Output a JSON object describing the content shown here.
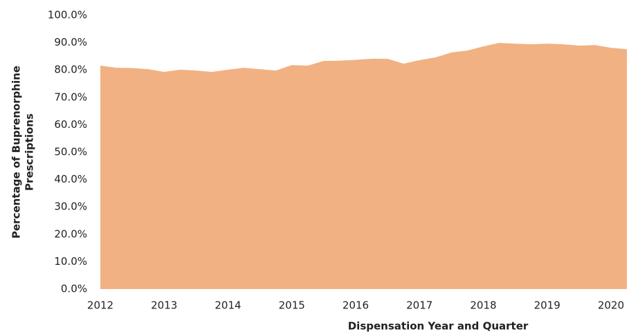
{
  "chart_data": {
    "type": "area",
    "x_label": "Dispensation Year and Quarter",
    "y_label_lines": [
      "Percentage of Buprenorphine",
      "Prescriptions"
    ],
    "categories": [
      "2012",
      null,
      null,
      null,
      "2013",
      null,
      null,
      null,
      "2014",
      null,
      null,
      null,
      "2015",
      null,
      null,
      null,
      "2016",
      null,
      null,
      null,
      "2017",
      null,
      null,
      null,
      "2018",
      null,
      null,
      null,
      "2019",
      null,
      null,
      null,
      "2020",
      null
    ],
    "values": [
      81.6,
      80.8,
      80.7,
      80.3,
      79.3,
      80.1,
      79.8,
      79.3,
      80.1,
      80.8,
      80.3,
      79.8,
      81.8,
      81.6,
      83.3,
      83.4,
      83.7,
      84.1,
      84.1,
      82.3,
      83.6,
      84.6,
      86.4,
      87.1,
      88.6,
      89.9,
      89.6,
      89.4,
      89.6,
      89.4,
      88.9,
      89.1,
      88.1,
      87.6
    ],
    "color": "#f2b183",
    "ylim": [
      0,
      100
    ],
    "yticks": [
      {
        "value": 0,
        "label": "0.0%"
      },
      {
        "value": 10,
        "label": "10.0%"
      },
      {
        "value": 20,
        "label": "20.0%"
      },
      {
        "value": 30,
        "label": "30.0%"
      },
      {
        "value": 40,
        "label": "40.0%"
      },
      {
        "value": 50,
        "label": "50.0%"
      },
      {
        "value": 60,
        "label": "60.0%"
      },
      {
        "value": 70,
        "label": "70.0%"
      },
      {
        "value": 80,
        "label": "80.0%"
      },
      {
        "value": 90,
        "label": "90.0%"
      },
      {
        "value": 100,
        "label": "100.0%"
      }
    ],
    "grid": false
  }
}
